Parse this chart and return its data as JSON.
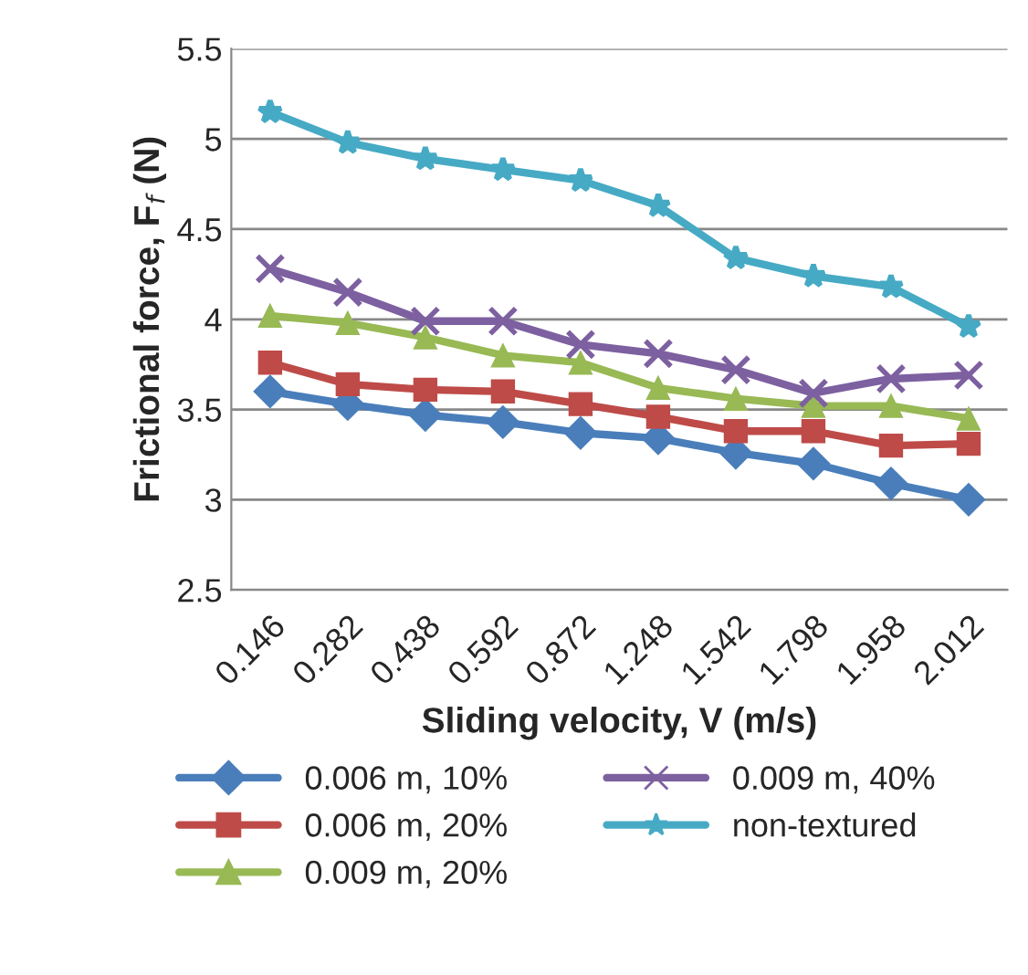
{
  "chart_data": {
    "type": "line",
    "xlabel": "Sliding velocity, V (m/s)",
    "ylabel": "Frictional force, F$_{f}$ (N)",
    "categories": [
      "0.146",
      "0.282",
      "0.438",
      "0.592",
      "0.872",
      "1.248",
      "1.542",
      "1.798",
      "1.958",
      "2.012"
    ],
    "series": [
      {
        "name": "0.006 m, 10%",
        "color": "#4a7ebb",
        "marker": "diamond",
        "values": [
          3.6,
          3.53,
          3.47,
          3.43,
          3.37,
          3.34,
          3.26,
          3.2,
          3.09,
          3.0
        ]
      },
      {
        "name": "0.006 m, 20%",
        "color": "#be4b48",
        "marker": "square",
        "values": [
          3.76,
          3.64,
          3.61,
          3.6,
          3.53,
          3.46,
          3.38,
          3.38,
          3.3,
          3.31
        ]
      },
      {
        "name": "0.009 m, 20%",
        "color": "#98b954",
        "marker": "triangle",
        "values": [
          4.02,
          3.98,
          3.9,
          3.8,
          3.76,
          3.62,
          3.56,
          3.52,
          3.52,
          3.45
        ]
      },
      {
        "name": "0.009 m, 40%",
        "color": "#7d60a0",
        "marker": "cross",
        "values": [
          4.28,
          4.15,
          3.99,
          3.99,
          3.86,
          3.81,
          3.72,
          3.59,
          3.67,
          3.69
        ]
      },
      {
        "name": "non-textured",
        "color": "#46aac5",
        "marker": "star",
        "values": [
          5.15,
          4.98,
          4.89,
          4.83,
          4.77,
          4.63,
          4.34,
          4.24,
          4.18,
          3.96
        ]
      }
    ],
    "ylim": [
      2.5,
      5.5
    ],
    "yticks": [
      2.5,
      3,
      3.5,
      4,
      4.5,
      5,
      5.5
    ],
    "grid": "y",
    "legend": "bottom",
    "line_style": "solid"
  }
}
